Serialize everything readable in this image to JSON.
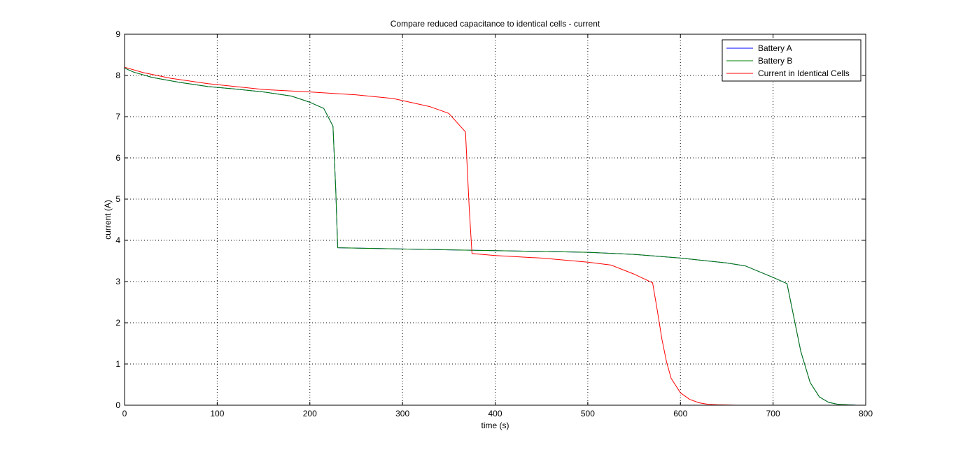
{
  "chart_data": {
    "type": "line",
    "title": "Compare reduced capacitance to identical cells - current",
    "xlabel": "time (s)",
    "ylabel": "current (A)",
    "xlim": [
      0,
      800
    ],
    "ylim": [
      0,
      9
    ],
    "xticks": [
      0,
      100,
      200,
      300,
      400,
      500,
      600,
      700,
      800
    ],
    "yticks": [
      0,
      1,
      2,
      3,
      4,
      5,
      6,
      7,
      8,
      9
    ],
    "grid": true,
    "legend_position": "top-right",
    "series": [
      {
        "name": "Battery A",
        "color": "#0000ff",
        "x": [
          0,
          10,
          30,
          60,
          90,
          120,
          150,
          180,
          200,
          215,
          225,
          228,
          230,
          300,
          350,
          400,
          450,
          500,
          550,
          600,
          650,
          670,
          700,
          715,
          720,
          730,
          740,
          750,
          760,
          770,
          780,
          790,
          800
        ],
        "y": [
          8.18,
          8.08,
          7.95,
          7.83,
          7.73,
          7.67,
          7.6,
          7.5,
          7.35,
          7.2,
          6.77,
          5.2,
          3.82,
          3.79,
          3.77,
          3.75,
          3.73,
          3.71,
          3.66,
          3.57,
          3.45,
          3.38,
          3.1,
          2.95,
          2.4,
          1.3,
          0.55,
          0.2,
          0.07,
          0.02,
          0.01,
          0.0,
          0.0
        ]
      },
      {
        "name": "Battery B",
        "color": "#008000",
        "x": [
          0,
          10,
          30,
          60,
          90,
          120,
          150,
          180,
          200,
          215,
          225,
          228,
          230,
          300,
          350,
          400,
          450,
          500,
          550,
          600,
          650,
          670,
          700,
          715,
          720,
          730,
          740,
          750,
          760,
          770,
          780,
          790,
          800
        ],
        "y": [
          8.18,
          8.08,
          7.95,
          7.83,
          7.73,
          7.67,
          7.6,
          7.5,
          7.35,
          7.2,
          6.77,
          5.2,
          3.82,
          3.79,
          3.77,
          3.75,
          3.73,
          3.71,
          3.66,
          3.57,
          3.45,
          3.38,
          3.1,
          2.95,
          2.4,
          1.3,
          0.55,
          0.2,
          0.07,
          0.02,
          0.01,
          0.0,
          0.0
        ]
      },
      {
        "name": "Current in Identical Cells",
        "color": "#ff0000",
        "x": [
          0,
          20,
          50,
          90,
          150,
          200,
          250,
          290,
          330,
          350,
          368,
          372,
          375,
          400,
          450,
          500,
          525,
          550,
          570,
          575,
          580,
          585,
          590,
          600,
          610,
          620,
          630,
          640,
          660,
          700,
          750,
          800
        ],
        "y": [
          8.2,
          8.07,
          7.93,
          7.8,
          7.66,
          7.6,
          7.53,
          7.44,
          7.24,
          7.08,
          6.63,
          4.8,
          3.68,
          3.63,
          3.57,
          3.47,
          3.4,
          3.18,
          2.97,
          2.3,
          1.6,
          1.05,
          0.65,
          0.3,
          0.14,
          0.06,
          0.02,
          0.01,
          0.0,
          0.0,
          0.0,
          0.0
        ]
      }
    ]
  }
}
